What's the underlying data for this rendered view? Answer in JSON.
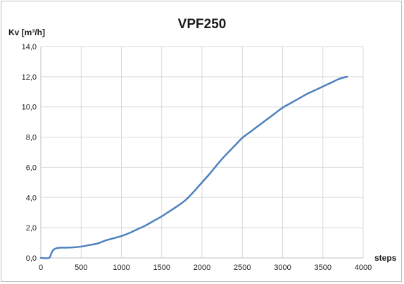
{
  "chart_data": {
    "type": "line",
    "title": "VPF250",
    "ylabel": "Kv [m³/h]",
    "xlabel": "steps",
    "xlim": [
      0,
      4000
    ],
    "ylim": [
      0,
      14
    ],
    "x_ticks": [
      "0",
      "500",
      "1000",
      "1500",
      "2000",
      "2500",
      "3000",
      "3500",
      "4000"
    ],
    "y_ticks": [
      "0,0",
      "2,0",
      "4,0",
      "6,0",
      "8,0",
      "10,0",
      "12,0",
      "14,0"
    ],
    "grid": true,
    "line_color": "#4f81bd",
    "grid_color": "#d9d9d9",
    "series": [
      {
        "x": [
          0,
          100,
          130,
          160,
          200,
          250,
          300,
          400,
          500,
          600,
          700,
          800,
          900,
          1000,
          1100,
          1200,
          1300,
          1400,
          1500,
          1600,
          1700,
          1800,
          1900,
          2000,
          2100,
          2200,
          2300,
          2400,
          2500,
          2600,
          2700,
          2800,
          2900,
          3000,
          3100,
          3200,
          3300,
          3400,
          3500,
          3600,
          3700,
          3800
        ],
        "y": [
          0.0,
          0.0,
          0.3,
          0.55,
          0.65,
          0.68,
          0.68,
          0.7,
          0.75,
          0.85,
          0.95,
          1.15,
          1.3,
          1.45,
          1.65,
          1.9,
          2.15,
          2.45,
          2.75,
          3.1,
          3.45,
          3.85,
          4.4,
          5.0,
          5.6,
          6.25,
          6.85,
          7.4,
          7.95,
          8.35,
          8.75,
          9.15,
          9.55,
          9.95,
          10.25,
          10.55,
          10.85,
          11.1,
          11.35,
          11.6,
          11.85,
          12.0
        ]
      }
    ]
  }
}
